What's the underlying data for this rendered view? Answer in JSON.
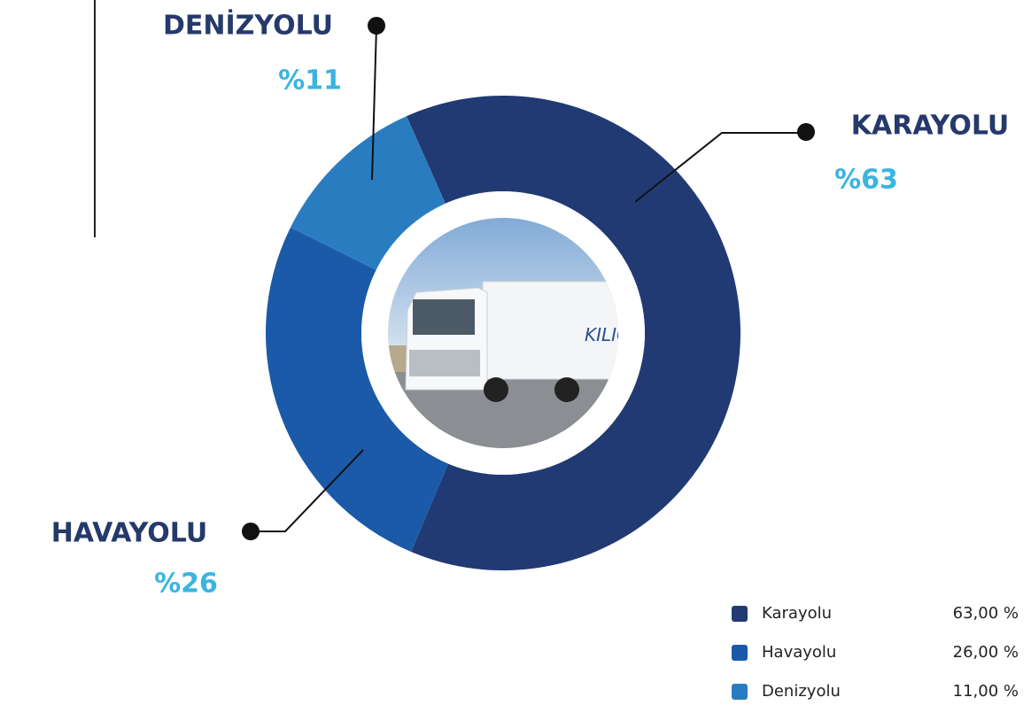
{
  "chart_data": {
    "type": "donut",
    "categories": [
      "Karayolu",
      "Havayolu",
      "Denizyolu"
    ],
    "callout_labels": [
      "KARAYOLU",
      "HAVAYOLU",
      "DENİZYOLU"
    ],
    "values": [
      63,
      26,
      11
    ],
    "value_labels": [
      "%63",
      "%26",
      "%11"
    ],
    "legend_value_labels": [
      "63,00 %",
      "26,00 %",
      "11,00 %"
    ],
    "colors": [
      "#213a73",
      "#1b5aa8",
      "#2a7cc0"
    ]
  }
}
